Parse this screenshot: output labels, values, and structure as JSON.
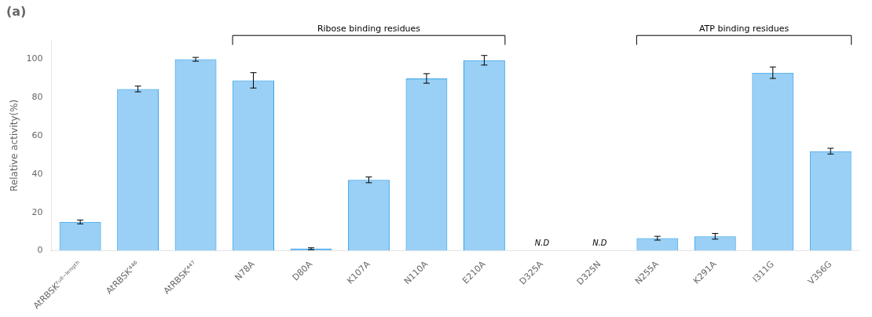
{
  "chart_data": {
    "type": "bar",
    "title": "(a)",
    "ylabel": "Relative activity(%)",
    "categories": [
      "AtRBSKᶠᵘˡˡ⁻ˡᵉⁿᵍᵗʰ",
      "AtRBSK⁴⁴⁶",
      "AtRBSK⁴⁴⁷",
      "N78A",
      "D80A",
      "K107A",
      "N110A",
      "E210A",
      "D325A",
      "D325N",
      "N255A",
      "K291A",
      "I311G",
      "V356G"
    ],
    "values": [
      15.0,
      84.5,
      100.0,
      89.0,
      1.0,
      37.0,
      90.0,
      99.5,
      0.0,
      0.0,
      6.5,
      7.5,
      93.0,
      52.0
    ],
    "errors": [
      1.0,
      1.5,
      1.0,
      4.0,
      0.5,
      1.5,
      2.5,
      2.5,
      null,
      null,
      1.0,
      1.5,
      3.0,
      1.5
    ],
    "ylim": [
      0,
      110
    ],
    "yticks": [
      0,
      20,
      40,
      60,
      80,
      100
    ],
    "grid": false,
    "legend": false,
    "annotations": [
      {
        "text": "N.D",
        "category": "D325A"
      },
      {
        "text": "N.D",
        "category": "D325N"
      },
      {
        "text": "Ribose binding residues",
        "from": "N78A",
        "to": "E210A"
      },
      {
        "text": "ATP binding residues",
        "from": "N255A",
        "to": "V356G"
      }
    ]
  }
}
